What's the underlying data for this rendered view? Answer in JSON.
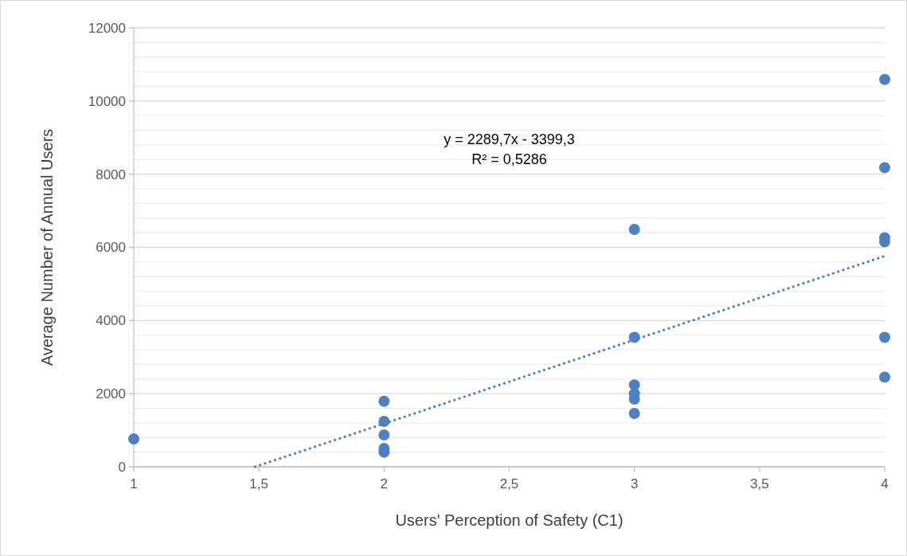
{
  "chart_data": {
    "type": "scatter",
    "xlabel": "Users' Perception of Safety (C1)",
    "ylabel": "Average Number of Annual Users",
    "series": [
      {
        "color": "#4f81bd",
        "x": [
          1,
          2,
          2,
          2,
          2,
          2,
          3,
          3,
          3,
          3,
          3,
          3,
          4,
          4,
          4,
          4,
          4,
          4
        ],
        "values": [
          760,
          1790,
          1240,
          870,
          500,
          400,
          6490,
          3540,
          2240,
          2000,
          1850,
          1460,
          10590,
          8180,
          6260,
          6150,
          3540,
          2450
        ]
      },
      {
        "type": "line",
        "color": "#4f81bd",
        "line_style": "dotted",
        "marker": "none",
        "x": [
          1.4846,
          4
        ],
        "values": [
          0,
          5760
        ]
      }
    ],
    "annotations": [
      "y = 2289,7x - 3399,3",
      "R² = 0,5286"
    ],
    "xlim": [
      1,
      4
    ],
    "xticks": [
      {
        "value": 1,
        "label": "1"
      },
      {
        "value": 1.5,
        "label": "1,5"
      },
      {
        "value": 2,
        "label": "2"
      },
      {
        "value": 2.5,
        "label": "2,5"
      },
      {
        "value": 3,
        "label": "3"
      },
      {
        "value": 3.5,
        "label": "3,5"
      },
      {
        "value": 4,
        "label": "4"
      }
    ],
    "ylim": [
      0,
      12000
    ],
    "yticks": [
      0,
      {
        "value": 400,
        "label": null
      },
      {
        "value": 800,
        "label": null
      },
      {
        "value": 1200,
        "label": null
      },
      {
        "value": 1600,
        "label": null
      },
      2000,
      {
        "value": 2400,
        "label": null
      },
      {
        "value": 2800,
        "label": null
      },
      {
        "value": 3200,
        "label": null
      },
      {
        "value": 3600,
        "label": null
      },
      4000,
      {
        "value": 4400,
        "label": null
      },
      {
        "value": 4800,
        "label": null
      },
      {
        "value": 5200,
        "label": null
      },
      {
        "value": 5600,
        "label": null
      },
      6000,
      {
        "value": 6400,
        "label": null
      },
      {
        "value": 6800,
        "label": null
      },
      {
        "value": 7200,
        "label": null
      },
      {
        "value": 7600,
        "label": null
      },
      8000,
      {
        "value": 8400,
        "label": null
      },
      {
        "value": 8800,
        "label": null
      },
      {
        "value": 9200,
        "label": null
      },
      {
        "value": 9600,
        "label": null
      },
      10000,
      {
        "value": 10400,
        "label": null
      },
      {
        "value": 10800,
        "label": null
      },
      {
        "value": 11200,
        "label": null
      },
      {
        "value": 11600,
        "label": null
      },
      12000
    ],
    "grid": "y",
    "marker": "circle"
  }
}
